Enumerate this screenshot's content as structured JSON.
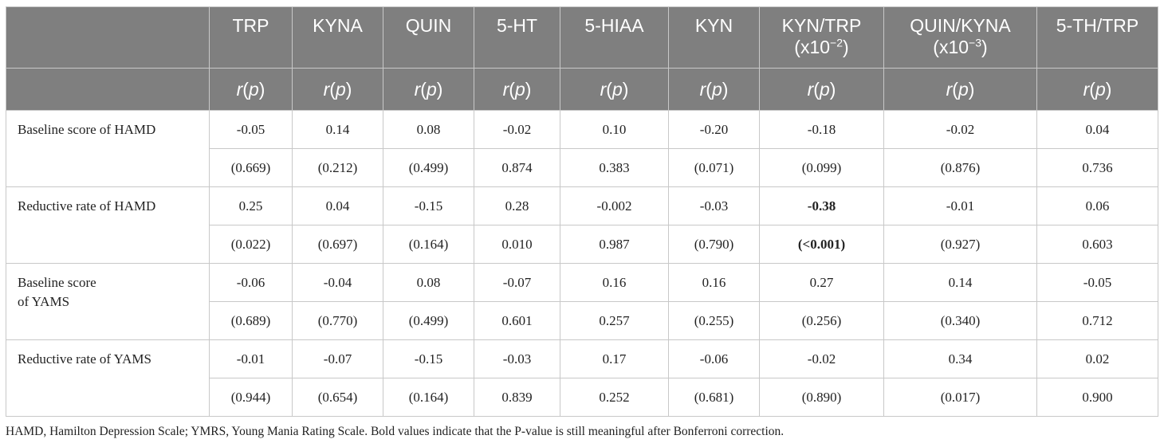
{
  "table": {
    "columns": [
      {
        "label": "TRP"
      },
      {
        "label": "KYNA"
      },
      {
        "label": "QUIN"
      },
      {
        "label": "5-HT"
      },
      {
        "label": "5-HIAA"
      },
      {
        "label": "KYN"
      },
      {
        "label": "KYN/TRP",
        "unit_prefix": "(x10",
        "unit_exp": "−2",
        "unit_suffix": ")"
      },
      {
        "label": "QUIN/KYNA",
        "unit_prefix": "(x10",
        "unit_exp": "−3",
        "unit_suffix": ")"
      },
      {
        "label": "5-TH/TRP"
      }
    ],
    "subheader": {
      "r": "r",
      "open": "(",
      "p": "p",
      "close": ")"
    },
    "groups": [
      {
        "label_lines": [
          "Baseline score of HAMD"
        ],
        "r": [
          "-0.05",
          "0.14",
          "0.08",
          "-0.02",
          "0.10",
          "-0.20",
          "-0.18",
          "-0.02",
          "0.04"
        ],
        "p": [
          "(0.669)",
          "(0.212)",
          "(0.499)",
          "0.874",
          "0.383",
          "(0.071)",
          "(0.099)",
          "(0.876)",
          "0.736"
        ]
      },
      {
        "label_lines": [
          "Reductive rate of HAMD"
        ],
        "r": [
          "0.25",
          "0.04",
          "-0.15",
          "0.28",
          "-0.002",
          "-0.03",
          "-0.38",
          "-0.01",
          "0.06"
        ],
        "p": [
          "(0.022)",
          "(0.697)",
          "(0.164)",
          "0.010",
          "0.987",
          "(0.790)",
          "(<0.001)",
          "(0.927)",
          "0.603"
        ],
        "bold_index": 6
      },
      {
        "label_lines": [
          "Baseline score",
          "of YAMS"
        ],
        "r": [
          "-0.06",
          "-0.04",
          "0.08",
          "-0.07",
          "0.16",
          "0.16",
          "0.27",
          "0.14",
          "-0.05"
        ],
        "p": [
          "(0.689)",
          "(0.770)",
          "(0.499)",
          "0.601",
          "0.257",
          "(0.255)",
          "(0.256)",
          "(0.340)",
          "0.712"
        ]
      },
      {
        "label_lines": [
          "Reductive rate of YAMS"
        ],
        "r": [
          "-0.01",
          "-0.07",
          "-0.15",
          "-0.03",
          "0.17",
          "-0.06",
          "-0.02",
          "0.34",
          "0.02"
        ],
        "p": [
          "(0.944)",
          "(0.654)",
          "(0.164)",
          "0.839",
          "0.252",
          "(0.681)",
          "(0.890)",
          "(0.017)",
          "0.900"
        ]
      }
    ],
    "footnote": "HAMD, Hamilton Depression Scale; YMRS, Young Mania Rating Scale. Bold values indicate that the P-value is still meaningful after Bonferroni correction."
  }
}
